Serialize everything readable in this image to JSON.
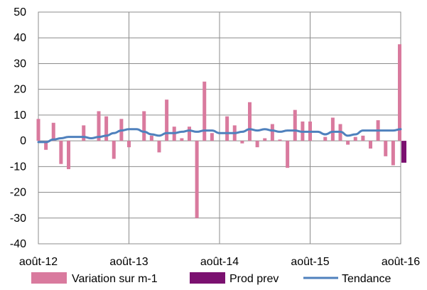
{
  "chart_data": {
    "type": "bar",
    "title": "",
    "xlabel": "",
    "ylabel": "",
    "ylim": [
      -40,
      50
    ],
    "yticks": [
      -40,
      -30,
      -20,
      -10,
      0,
      10,
      20,
      30,
      40,
      50
    ],
    "xtick_labels": [
      "août-12",
      "août-13",
      "août-14",
      "août-15",
      "août-16"
    ],
    "grid": true,
    "legend_position": "bottom",
    "categories": [
      "août-12",
      "sept-12",
      "oct-12",
      "nov-12",
      "déc-12",
      "janv-13",
      "févr-13",
      "mars-13",
      "avr-13",
      "mai-13",
      "juin-13",
      "juil-13",
      "août-13",
      "sept-13",
      "oct-13",
      "nov-13",
      "déc-13",
      "janv-14",
      "févr-14",
      "mars-14",
      "avr-14",
      "mai-14",
      "juin-14",
      "juil-14",
      "août-14",
      "sept-14",
      "oct-14",
      "nov-14",
      "déc-14",
      "janv-15",
      "févr-15",
      "mars-15",
      "avr-15",
      "mai-15",
      "juin-15",
      "juil-15",
      "août-15",
      "sept-15",
      "oct-15",
      "nov-15",
      "déc-15",
      "janv-16",
      "févr-16",
      "mars-16",
      "avr-16",
      "mai-16",
      "juin-16",
      "juil-16",
      "août-16"
    ],
    "series": [
      {
        "name": "Variation sur m-1",
        "kind": "bar",
        "color": "#d97a9e",
        "values": [
          8.5,
          -3.5,
          7,
          -9,
          -11,
          0,
          6,
          0,
          11.5,
          9.5,
          -7,
          8.5,
          -2.5,
          0,
          11.5,
          2,
          -4.5,
          16,
          5.5,
          1,
          5.5,
          -30,
          23,
          3,
          0,
          9.5,
          6,
          -1,
          15,
          -2.5,
          1,
          6.5,
          0.5,
          -10.5,
          12,
          7.5,
          7.5,
          0,
          1.5,
          9,
          6.5,
          -1.5,
          1.5,
          2,
          -3,
          8,
          -6,
          -9.5,
          37.5
        ]
      },
      {
        "name": "Prod prev",
        "kind": "bar",
        "color": "#7b1170",
        "values": [
          null,
          null,
          null,
          null,
          null,
          null,
          null,
          null,
          null,
          null,
          null,
          null,
          null,
          null,
          null,
          null,
          null,
          null,
          null,
          null,
          null,
          null,
          null,
          null,
          null,
          null,
          null,
          null,
          null,
          null,
          null,
          null,
          null,
          null,
          null,
          null,
          null,
          null,
          null,
          null,
          null,
          null,
          null,
          null,
          null,
          null,
          null,
          null,
          -8.5
        ]
      },
      {
        "name": "Tendance",
        "kind": "line",
        "color": "#4f81bd",
        "values": [
          -0.5,
          -0.5,
          0.5,
          1,
          1.5,
          1.5,
          1.5,
          1,
          1.5,
          2,
          3,
          4,
          4.5,
          4.5,
          3.5,
          2.5,
          2,
          3,
          3,
          3.5,
          4,
          3.5,
          4,
          4,
          3,
          3,
          3,
          3.5,
          4.5,
          4,
          4.5,
          4,
          3.5,
          4,
          4,
          3.5,
          3.5,
          3.5,
          2.5,
          3.5,
          3.5,
          2,
          2.5,
          4,
          4,
          4,
          4,
          4,
          4.5
        ]
      }
    ]
  }
}
